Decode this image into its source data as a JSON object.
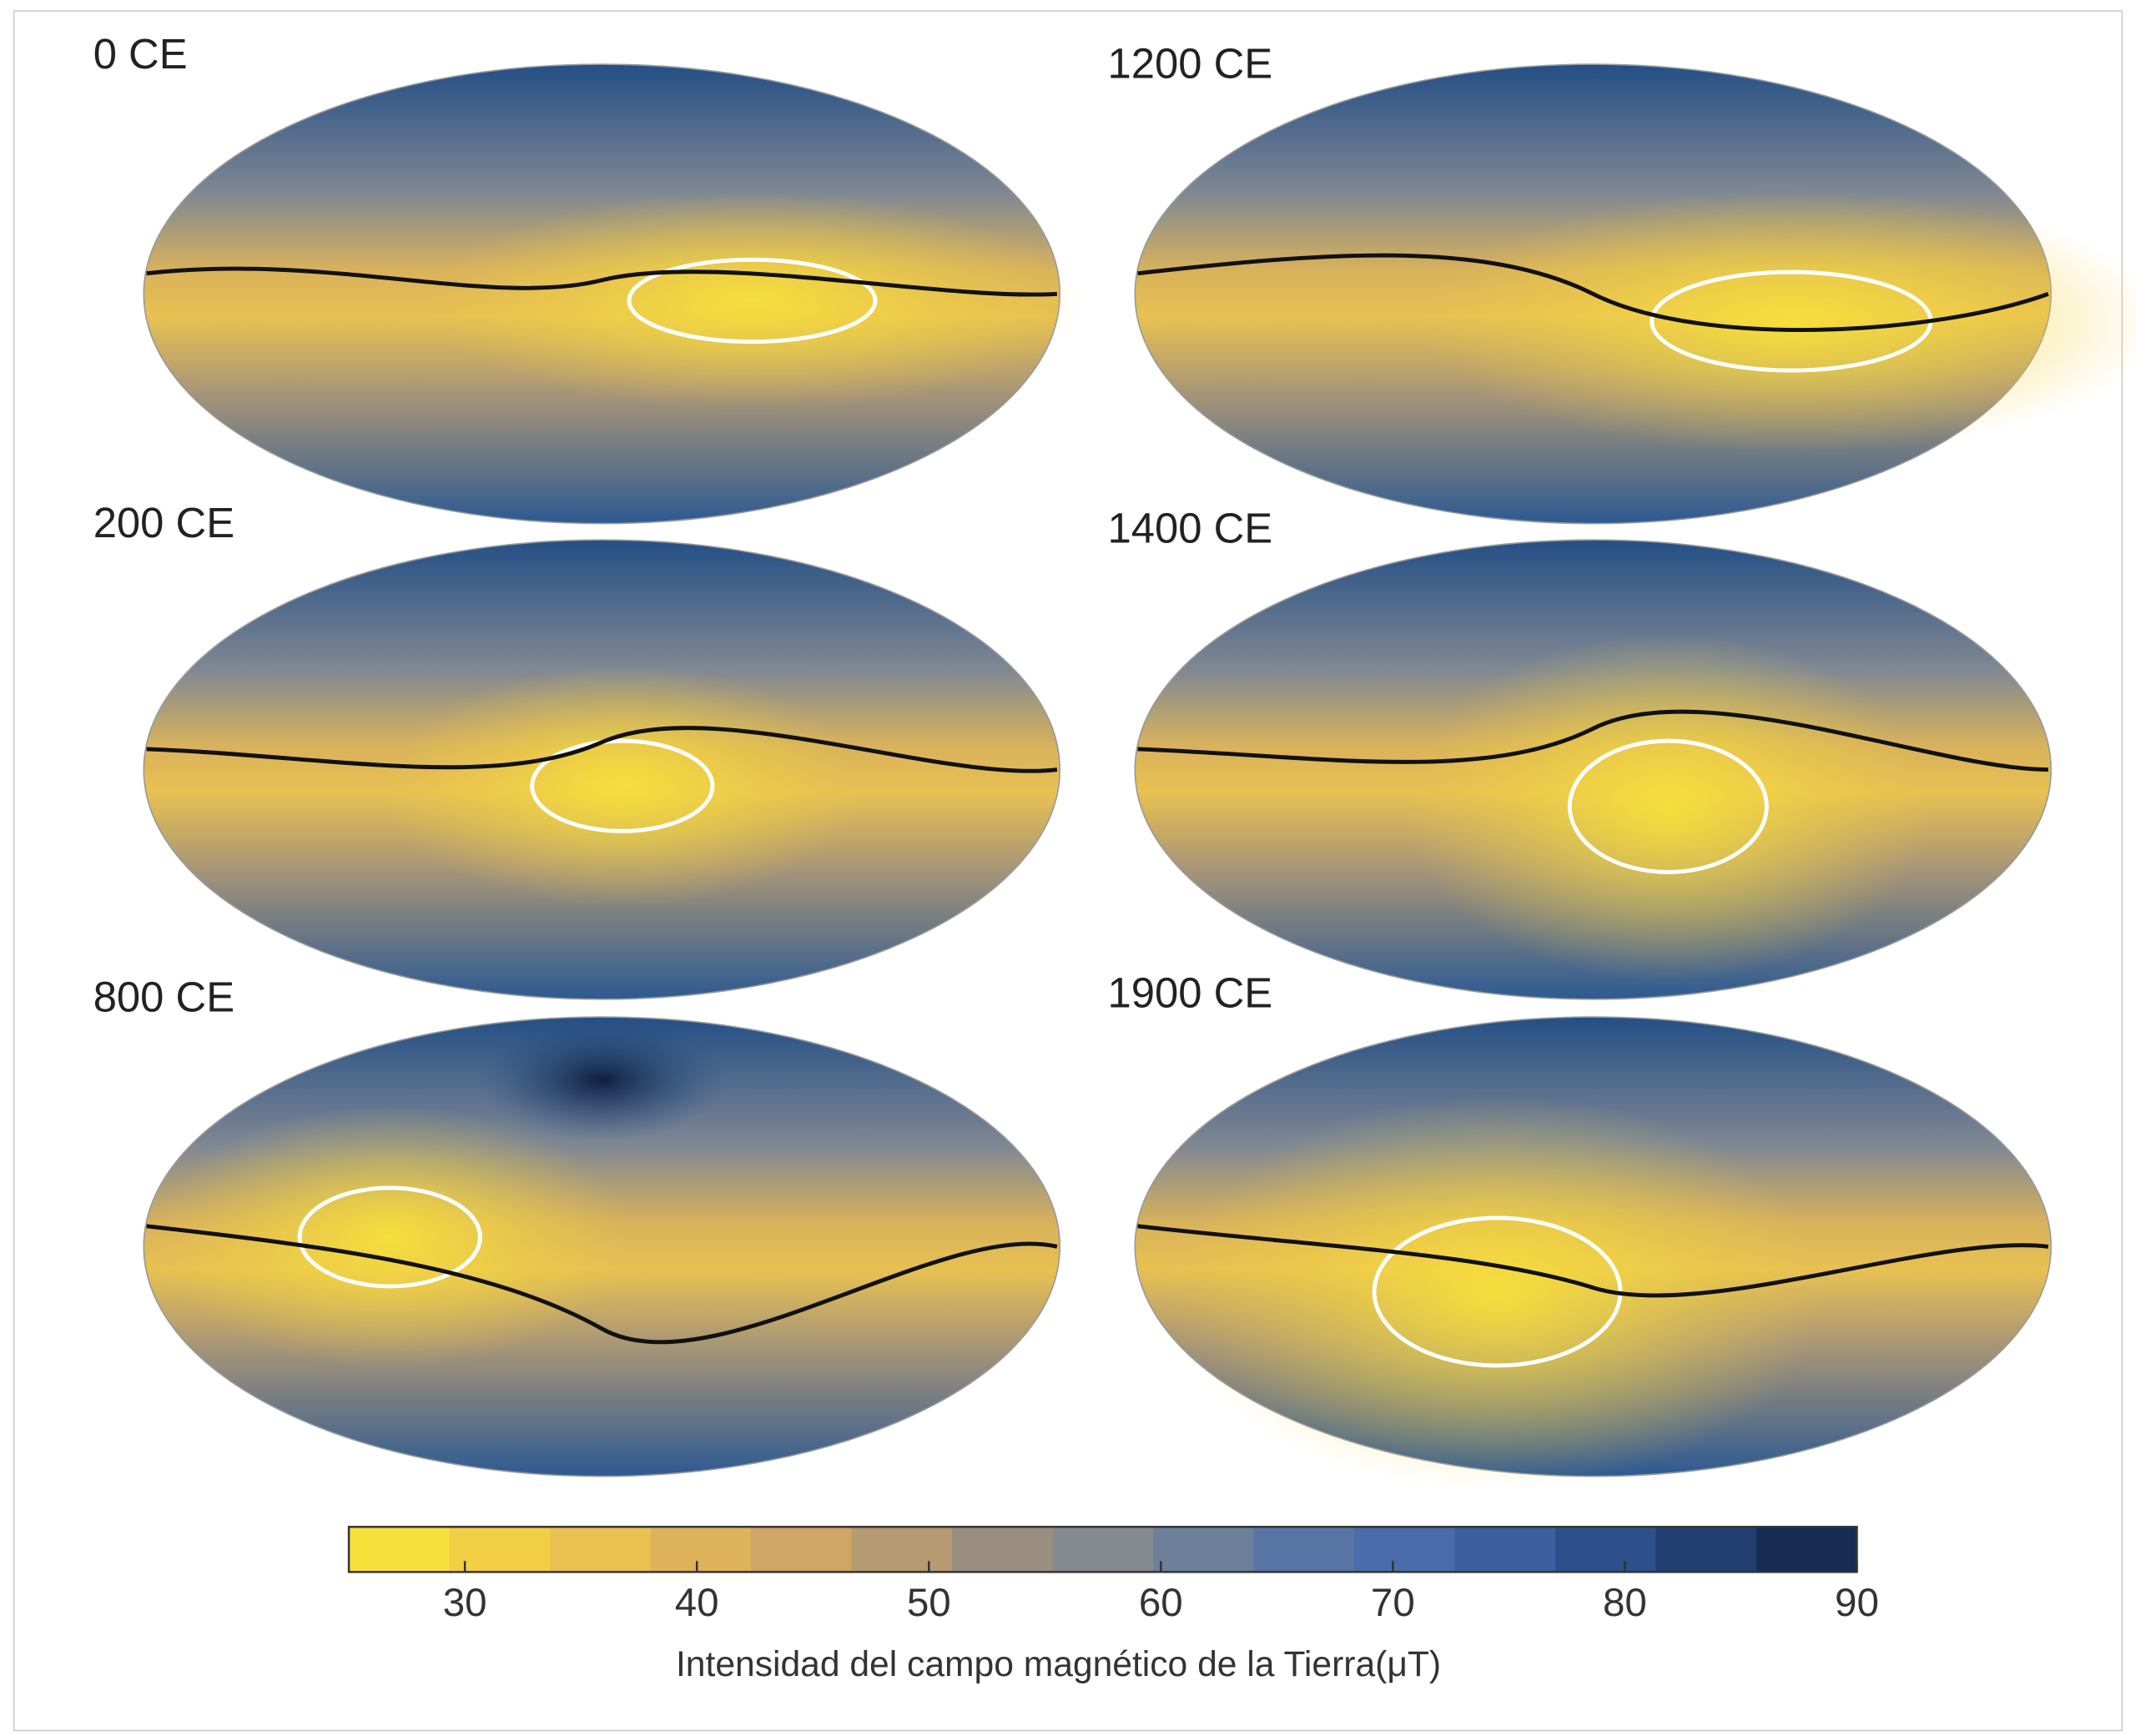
{
  "panels": [
    {
      "label": "0 CE"
    },
    {
      "label": "1200 CE"
    },
    {
      "label": "200 CE"
    },
    {
      "label": "1400 CE"
    },
    {
      "label": "800 CE"
    },
    {
      "label": "1900 CE"
    }
  ],
  "colorbar": {
    "lim": [
      25,
      90
    ],
    "ticks": [
      30,
      40,
      50,
      60,
      70,
      80,
      90
    ],
    "label": "Intensidad del campo magnético de la Tierra(μT)",
    "colors": [
      "#f7e03a",
      "#f2cf45",
      "#eac050",
      "#ddb25a",
      "#cfa665",
      "#b59a72",
      "#9a8e80",
      "#858a8e",
      "#6e7f99",
      "#5975a5",
      "#4a6caa",
      "#3b5f9f",
      "#2d4f8a",
      "#223e70",
      "#172c52"
    ]
  }
}
